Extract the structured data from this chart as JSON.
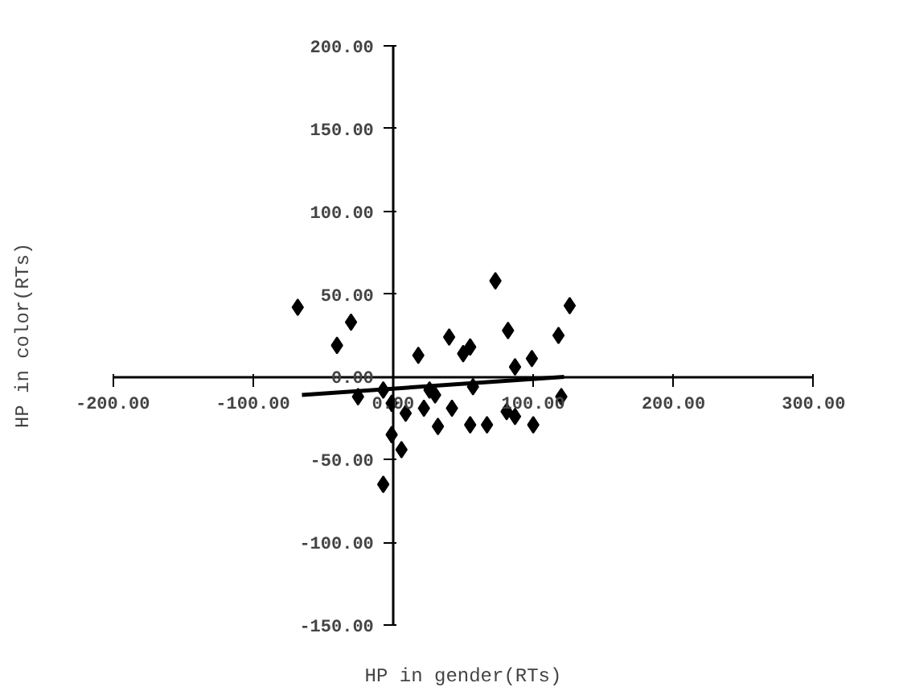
{
  "chart_data": {
    "type": "scatter",
    "xlabel": "HP in gender(RTs)",
    "ylabel": "HP in color(RTs)",
    "xlim": [
      -200,
      300
    ],
    "ylim": [
      -150,
      200
    ],
    "xticks": [
      {
        "value": -200,
        "label": "-200.00"
      },
      {
        "value": -100,
        "label": "-100.00"
      },
      {
        "value": 0,
        "label": "0.00"
      },
      {
        "value": 100,
        "label": "100.00"
      },
      {
        "value": 200,
        "label": "200.00"
      },
      {
        "value": 300,
        "label": "300.00"
      }
    ],
    "yticks": [
      {
        "value": -150,
        "label": "-150.00"
      },
      {
        "value": -100,
        "label": "-100.00"
      },
      {
        "value": -50,
        "label": "-50.00"
      },
      {
        "value": 0,
        "label": "0.00"
      },
      {
        "value": 50,
        "label": "50.00"
      },
      {
        "value": 100,
        "label": "100.00"
      },
      {
        "value": 150,
        "label": "150.00"
      },
      {
        "value": 200,
        "label": "200.00"
      }
    ],
    "grid": false,
    "series": [
      {
        "color": "#000000",
        "marker": "diamond",
        "x": [
          -68,
          -30,
          -40,
          -25,
          -7,
          -1,
          -1,
          6,
          -7,
          9,
          18,
          22,
          26,
          30,
          32,
          40,
          42,
          50,
          55,
          57,
          55,
          67,
          73,
          82,
          81,
          87,
          87,
          99,
          100,
          118,
          126,
          120
        ],
        "values": [
          42,
          33,
          19,
          -12,
          -8,
          -16,
          -35,
          -44,
          -65,
          -22,
          13,
          -19,
          -8,
          -11,
          -30,
          24,
          -19,
          14,
          18,
          -6,
          -29,
          -29,
          58,
          28,
          -21,
          -24,
          6,
          11,
          -29,
          25,
          43,
          -12
        ]
      },
      {
        "type": "line",
        "color": "#000000",
        "line_style": "solid",
        "x": [
          -65,
          122
        ],
        "values": [
          -11,
          0
        ]
      }
    ]
  }
}
